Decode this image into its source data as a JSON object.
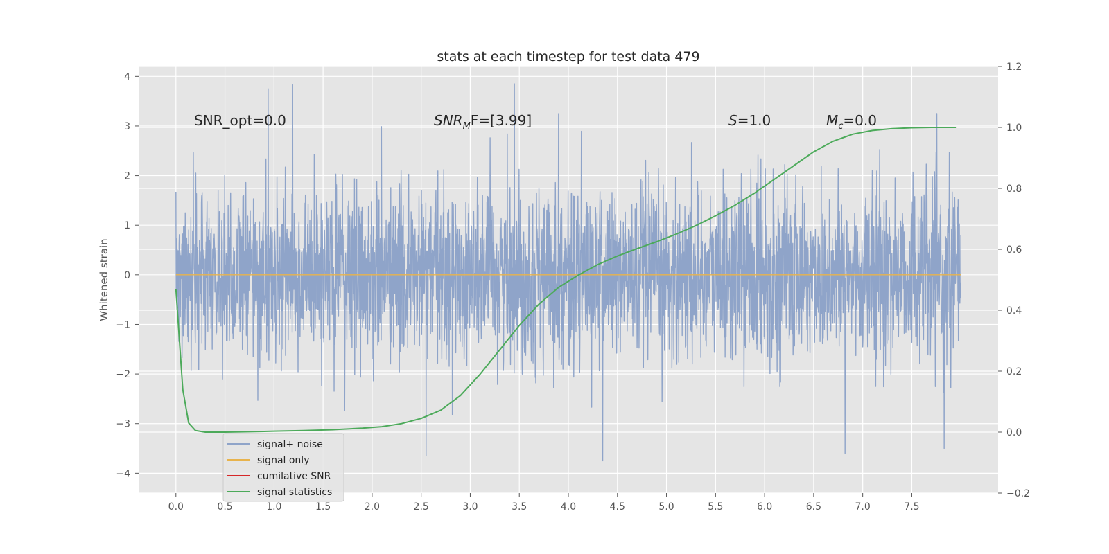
{
  "chart_data": {
    "type": "line",
    "title": "stats at each timestep for test data 479",
    "xlabel": "",
    "ylabel": "Whitened strain",
    "y2label": "",
    "xlim": [
      -0.38,
      8.38
    ],
    "ylim": [
      -4.4,
      4.2
    ],
    "y2lim": [
      -0.2,
      1.2
    ],
    "x_ticks": [
      "0.0",
      "0.5",
      "1.0",
      "1.5",
      "2.0",
      "2.5",
      "3.0",
      "3.5",
      "4.0",
      "4.5",
      "5.0",
      "5.5",
      "6.0",
      "6.5",
      "7.0",
      "7.5"
    ],
    "y_ticks": [
      "−4",
      "−3",
      "−2",
      "−1",
      "0",
      "1",
      "2",
      "3",
      "4"
    ],
    "y2_ticks": [
      "−0.2",
      "0.0",
      "0.2",
      "0.4",
      "0.6",
      "0.8",
      "1.0",
      "1.2"
    ],
    "grid": true,
    "legend_position": "lower left",
    "annotations": [
      {
        "prefix": "SNR_opt=0.0",
        "main": "",
        "sub": "",
        "suffix": ""
      },
      {
        "prefix": "",
        "main": "SNR",
        "sub": "M",
        "suffix": "F=[3.99]"
      },
      {
        "prefix": "",
        "main": "S",
        "sub": "",
        "suffix": "=1.0"
      },
      {
        "prefix": "",
        "main": "M",
        "sub": "c",
        "suffix": "=0.0"
      }
    ],
    "series": [
      {
        "name": "signal+ noise",
        "color": "#8fa4c9",
        "axis": "left",
        "description_of_values": "noise trace, approx. zero-mean, std ~0.85, sampled 0 to 8",
        "x_range": [
          0.0,
          8.0
        ],
        "peaks": [
          {
            "x": 0.94,
            "y": 3.75
          },
          {
            "x": 1.19,
            "y": 3.83
          },
          {
            "x": 3.45,
            "y": 3.85
          },
          {
            "x": 3.9,
            "y": 3.25
          },
          {
            "x": 2.55,
            "y": -3.65
          },
          {
            "x": 4.35,
            "y": -3.75
          },
          {
            "x": 6.82,
            "y": -3.6
          },
          {
            "x": 7.83,
            "y": -3.5
          }
        ]
      },
      {
        "name": "signal only",
        "color": "#e8b34c",
        "axis": "left",
        "x": [
          0.0,
          8.0
        ],
        "y": [
          0.0,
          0.0
        ]
      },
      {
        "name": "cumilative SNR",
        "color": "#d62728",
        "axis": "right",
        "x": [],
        "y": []
      },
      {
        "name": "signal statistics",
        "color": "#4caa5a",
        "axis": "right",
        "x": [
          0.0,
          0.07,
          0.13,
          0.2,
          0.3,
          0.5,
          0.7,
          1.0,
          1.3,
          1.6,
          1.9,
          2.1,
          2.3,
          2.5,
          2.7,
          2.9,
          3.1,
          3.3,
          3.5,
          3.7,
          3.9,
          4.1,
          4.3,
          4.5,
          4.7,
          4.9,
          5.1,
          5.3,
          5.5,
          5.7,
          5.9,
          6.1,
          6.3,
          6.5,
          6.7,
          6.9,
          7.1,
          7.3,
          7.5,
          7.7,
          7.95
        ],
        "y": [
          0.47,
          0.14,
          0.03,
          0.005,
          0.0,
          0.0,
          0.001,
          0.003,
          0.005,
          0.008,
          0.013,
          0.018,
          0.028,
          0.045,
          0.072,
          0.12,
          0.19,
          0.27,
          0.35,
          0.42,
          0.475,
          0.515,
          0.55,
          0.578,
          0.602,
          0.625,
          0.65,
          0.678,
          0.71,
          0.745,
          0.785,
          0.83,
          0.875,
          0.92,
          0.955,
          0.978,
          0.99,
          0.996,
          0.999,
          1.0,
          1.0
        ]
      }
    ]
  }
}
